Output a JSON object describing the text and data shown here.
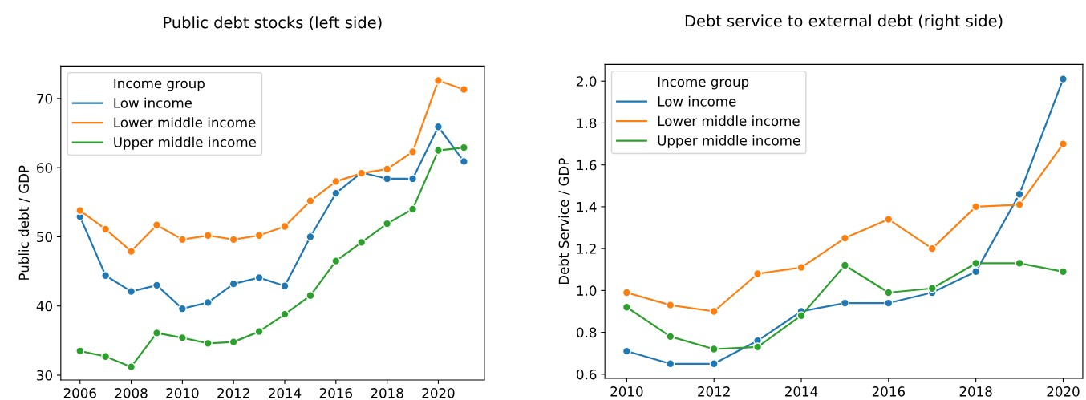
{
  "chart_data": [
    {
      "type": "line",
      "title": "Public debt stocks (left side)",
      "ylabel": "Public debt / GDP",
      "legend_title": "Income group",
      "legend": "top left",
      "marker": "circle",
      "grid": false,
      "x": [
        2006,
        2007,
        2008,
        2009,
        2010,
        2011,
        2012,
        2013,
        2014,
        2015,
        2016,
        2017,
        2018,
        2019,
        2020,
        2021
      ],
      "xlim": [
        2005.25,
        2021.8
      ],
      "xticks": [
        2006,
        2008,
        2010,
        2012,
        2014,
        2016,
        2018,
        2020
      ],
      "ylim": [
        29.3,
        74.7
      ],
      "yticks": [
        30,
        40,
        50,
        60,
        70
      ],
      "series": [
        {
          "name": "Low income",
          "color": "#1f77b4",
          "values": [
            52.9,
            44.4,
            42.1,
            43.0,
            39.6,
            40.5,
            43.2,
            44.1,
            42.9,
            50.0,
            56.3,
            59.3,
            58.4,
            58.4,
            65.9,
            60.9
          ]
        },
        {
          "name": "Lower middle income",
          "color": "#ff7f0e",
          "values": [
            53.8,
            51.1,
            47.9,
            51.7,
            49.6,
            50.2,
            49.6,
            50.2,
            51.5,
            55.2,
            58.0,
            59.2,
            59.8,
            62.3,
            72.6,
            71.3
          ]
        },
        {
          "name": "Upper middle income",
          "color": "#2ca02c",
          "values": [
            33.5,
            32.7,
            31.2,
            36.1,
            35.4,
            34.6,
            34.8,
            36.3,
            38.8,
            41.5,
            46.5,
            49.2,
            51.9,
            54.0,
            62.5,
            62.9
          ]
        }
      ]
    },
    {
      "type": "line",
      "title": "Debt service to external debt (right side)",
      "ylabel": "Debt Service / GDP",
      "legend_title": "Income group",
      "legend": "top left",
      "marker": "circle",
      "grid": false,
      "x": [
        2010,
        2011,
        2012,
        2013,
        2014,
        2015,
        2016,
        2017,
        2018,
        2019,
        2020
      ],
      "xlim": [
        2009.5,
        2020.45
      ],
      "xticks": [
        2010,
        2012,
        2014,
        2016,
        2018,
        2020
      ],
      "ylim": [
        0.58,
        2.08
      ],
      "yticks": [
        {
          "value": 0.6,
          "label": "0.6"
        },
        {
          "value": 0.8,
          "label": "0.8"
        },
        {
          "value": 1.0,
          "label": "1.0"
        },
        {
          "value": 1.2,
          "label": "1.2"
        },
        {
          "value": 1.4,
          "label": "1.4"
        },
        {
          "value": 1.6,
          "label": "1.6"
        },
        {
          "value": 1.8,
          "label": "1.8"
        },
        {
          "value": 2.0,
          "label": "2.0"
        }
      ],
      "series": [
        {
          "name": "Low income",
          "color": "#1f77b4",
          "values": [
            0.71,
            0.65,
            0.65,
            0.76,
            0.9,
            0.94,
            0.94,
            0.99,
            1.09,
            1.46,
            2.01
          ]
        },
        {
          "name": "Lower middle income",
          "color": "#ff7f0e",
          "values": [
            0.99,
            0.93,
            0.9,
            1.08,
            1.11,
            1.25,
            1.34,
            1.2,
            1.4,
            1.41,
            1.7
          ]
        },
        {
          "name": "Upper middle income",
          "color": "#2ca02c",
          "values": [
            0.92,
            0.78,
            0.72,
            0.73,
            0.88,
            1.12,
            0.99,
            1.01,
            1.13,
            1.13,
            1.09
          ]
        }
      ]
    }
  ]
}
